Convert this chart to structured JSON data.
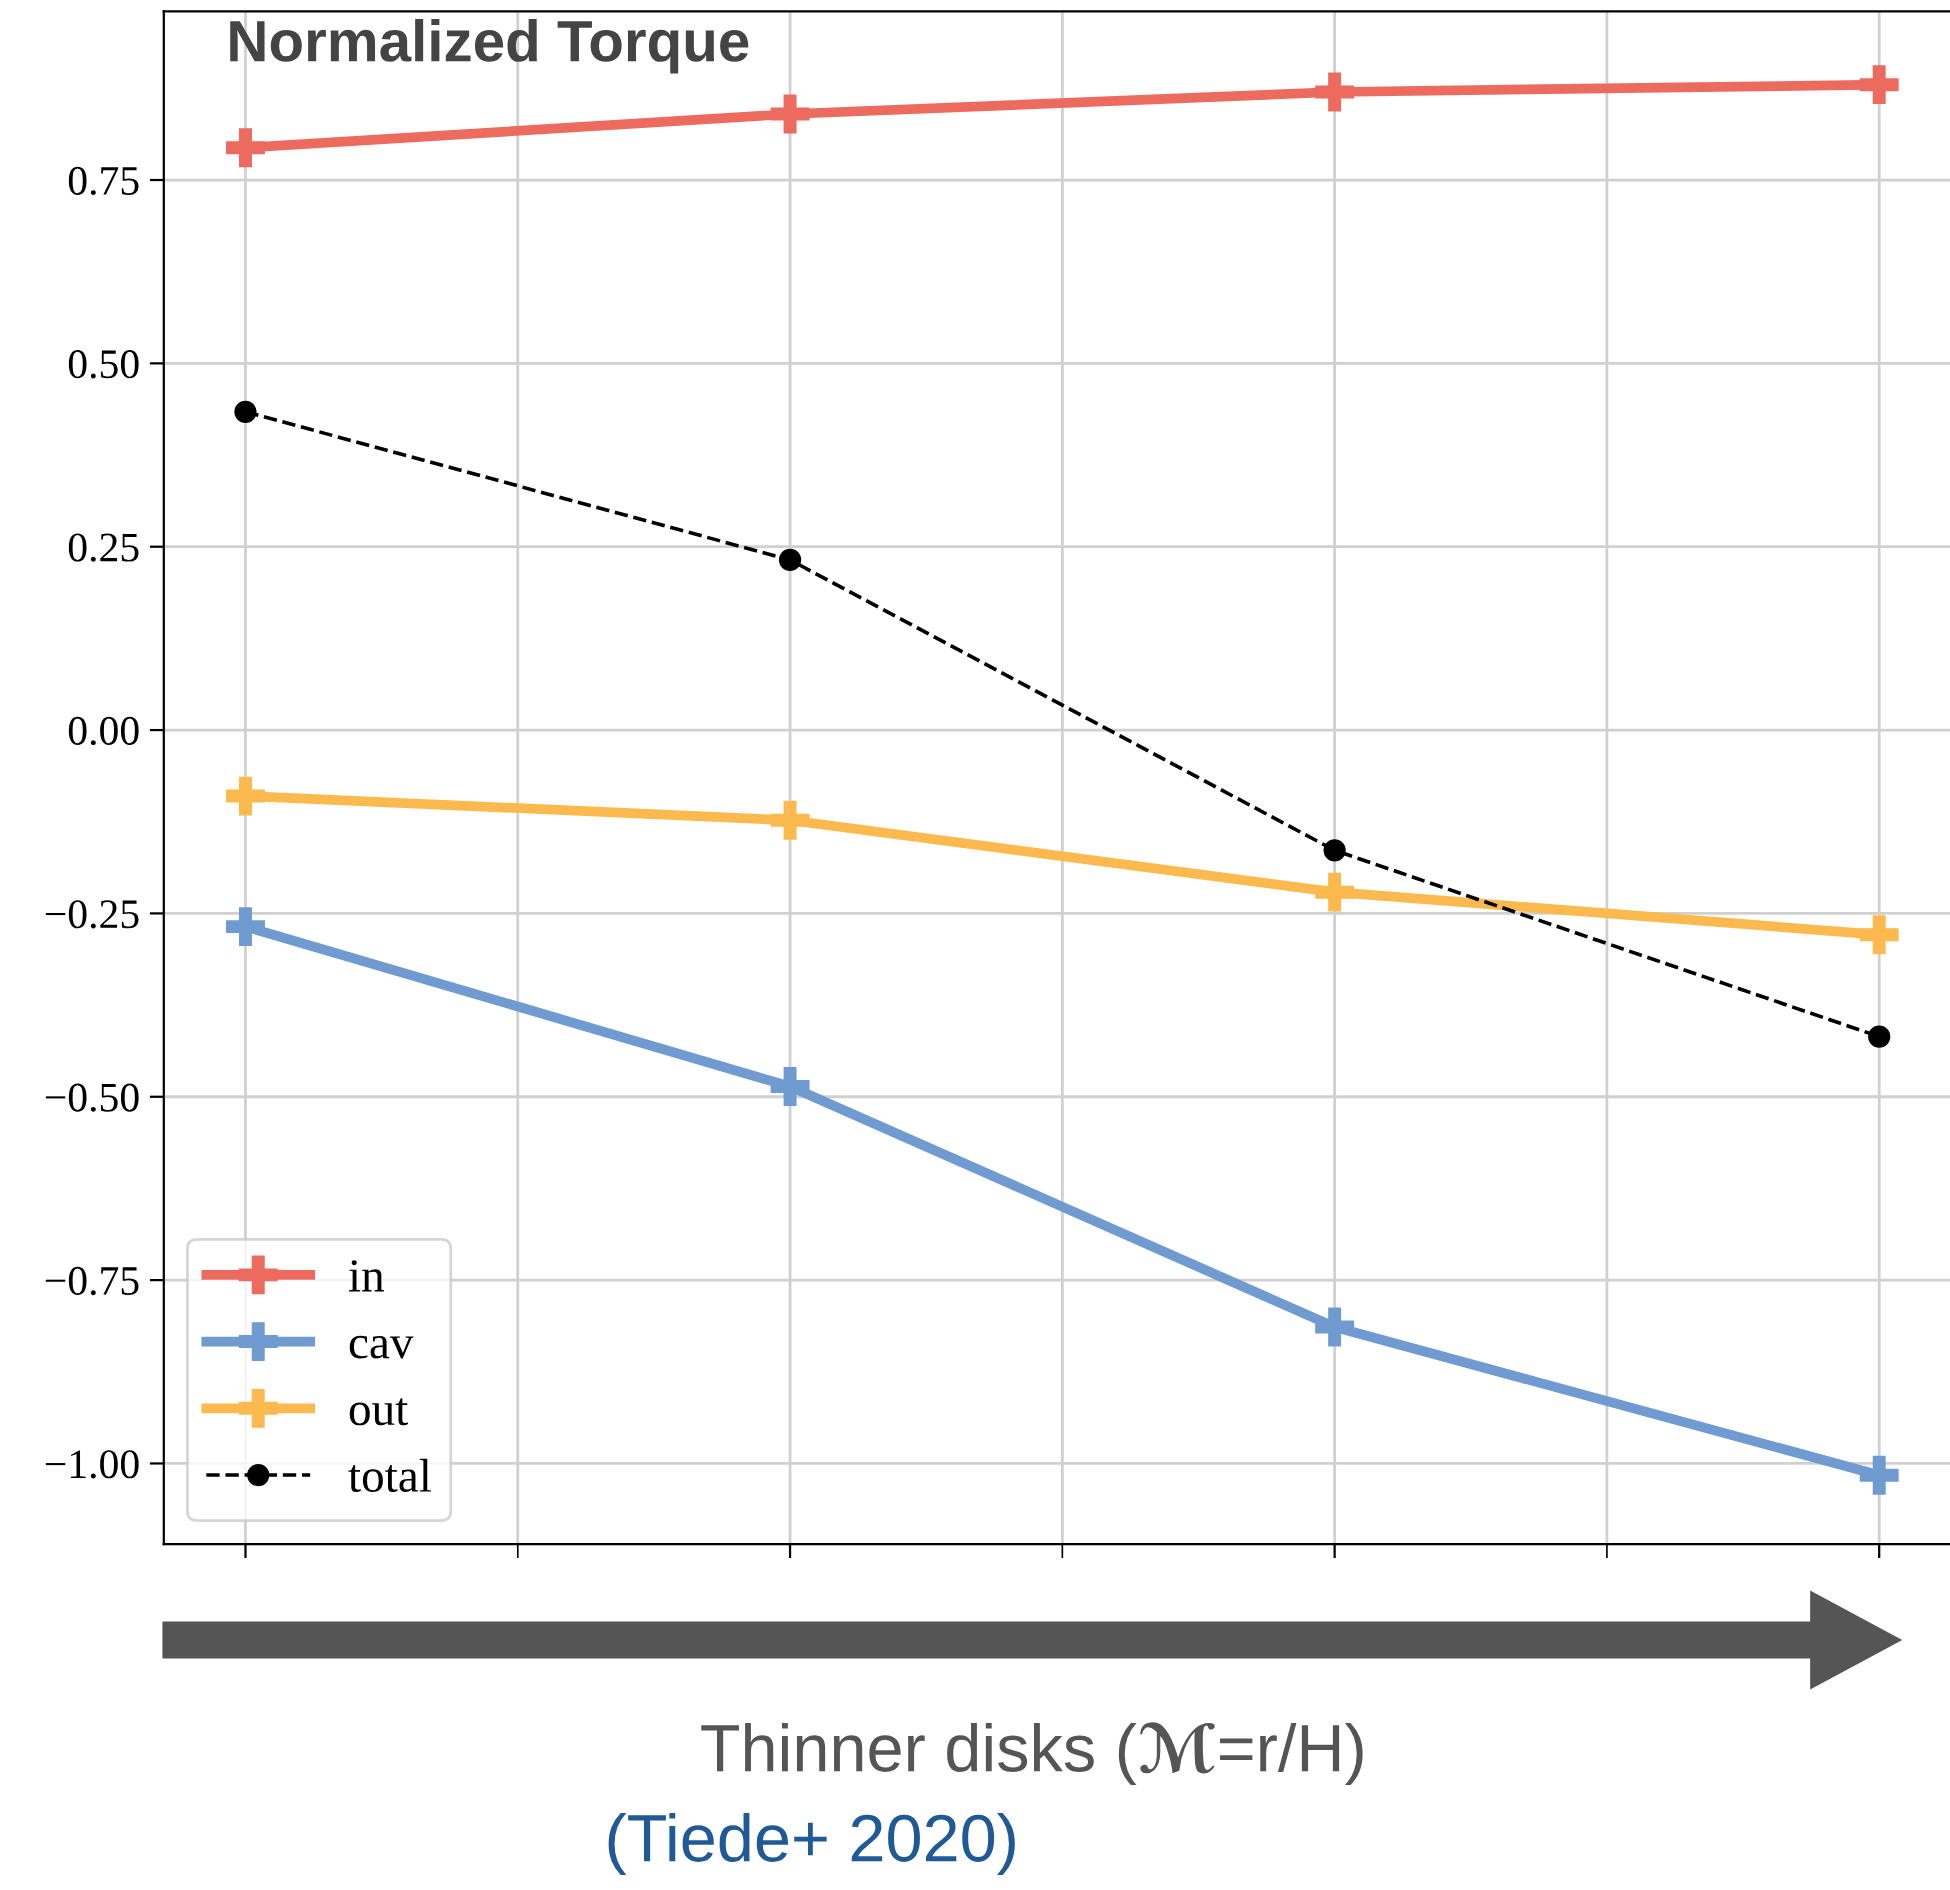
{
  "chart_data": {
    "type": "line",
    "title": "Normalized Torque",
    "xlabel": "Thinner disks (ℳ=r/H)",
    "annotations": [
      "(Tiede+ 2020)"
    ],
    "categories": [
      null,
      null,
      null,
      null
    ],
    "series": [
      {
        "name": "in",
        "color": "#ec6a5e",
        "values": [
          0.794,
          0.84,
          0.87,
          0.88
        ],
        "marker": "cross",
        "line_style": "solid"
      },
      {
        "name": "cav",
        "color": "#6f9bd1",
        "values": [
          -0.268,
          -0.486,
          -0.814,
          -1.016
        ],
        "marker": "cross",
        "line_style": "solid"
      },
      {
        "name": "out",
        "color": "#fcb94d",
        "values": [
          -0.09,
          -0.123,
          -0.221,
          -0.279
        ],
        "marker": "cross",
        "line_style": "solid"
      },
      {
        "name": "total",
        "color": "#000000",
        "values": [
          0.434,
          0.232,
          -0.164,
          -0.418
        ],
        "marker": "circle",
        "line_style": "dashed"
      }
    ],
    "ylim": [
      -1.11,
      0.98
    ],
    "yticks": [
      {
        "value": -1.0,
        "label": "−1.00"
      },
      {
        "value": -0.75,
        "label": "−0.75"
      },
      {
        "value": -0.5,
        "label": "−0.50"
      },
      {
        "value": -0.25,
        "label": "−0.25"
      },
      {
        "value": 0.0,
        "label": "0.00"
      },
      {
        "value": 0.25,
        "label": "0.25"
      },
      {
        "value": 0.5,
        "label": "0.50"
      },
      {
        "value": 0.75,
        "label": "0.75"
      }
    ],
    "grid": true,
    "legend": "bottom left"
  }
}
